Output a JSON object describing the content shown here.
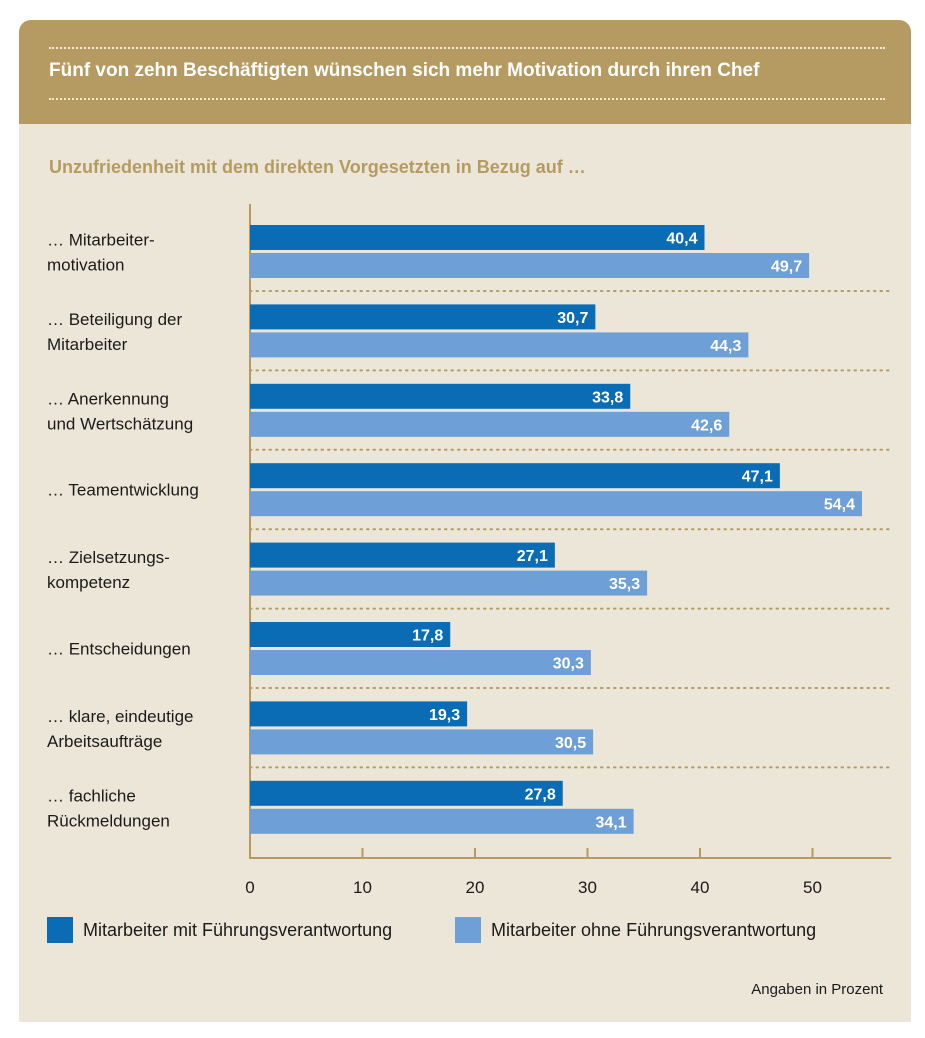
{
  "header": {
    "title": "Fünf von zehn Beschäftigten wünschen sich mehr Motivation durch ihren Chef",
    "subtitle": "Unzufriedenheit mit dem direkten Vorgesetzten in Bezug auf …"
  },
  "colors": {
    "series1": "#0a6cb4",
    "series2": "#6e9fd6",
    "header_bg": "#b59b62",
    "card_bg": "#ece6d9"
  },
  "chart_data": {
    "type": "bar",
    "orientation": "horizontal",
    "categories": [
      [
        "… Mitarbeiter-",
        "motivation"
      ],
      [
        "… Beteiligung der",
        "Mitarbeiter"
      ],
      [
        "… Anerkennung",
        "und Wertschätzung"
      ],
      [
        "… Teamentwicklung"
      ],
      [
        "… Zielsetzungs-",
        "kompetenz"
      ],
      [
        "… Entscheidungen"
      ],
      [
        "… klare, eindeutige",
        "Arbeitsaufträge"
      ],
      [
        "… fachliche",
        "Rückmeldungen"
      ]
    ],
    "series": [
      {
        "name": "Mitarbeiter mit Führungsverantwortung",
        "values": [
          40.4,
          30.7,
          33.8,
          47.1,
          27.1,
          17.8,
          19.3,
          27.8
        ],
        "labels": [
          "40,4",
          "30,7",
          "33,8",
          "47,1",
          "27,1",
          "17,8",
          "19,3",
          "27,8"
        ]
      },
      {
        "name": "Mitarbeiter ohne Führungsverantwortung",
        "values": [
          49.7,
          44.3,
          42.6,
          54.4,
          35.3,
          30.3,
          30.5,
          34.1
        ],
        "labels": [
          "49,7",
          "44,3",
          "42,6",
          "54,4",
          "35,3",
          "30,3",
          "30,5",
          "34,1"
        ]
      }
    ],
    "xticks": [
      0,
      10,
      20,
      30,
      40,
      50
    ],
    "xtick_labels": [
      "0",
      "10",
      "20",
      "30",
      "40",
      "50"
    ],
    "xlim": [
      0,
      57
    ],
    "legend_position": "bottom",
    "note": "Angaben in Prozent"
  }
}
